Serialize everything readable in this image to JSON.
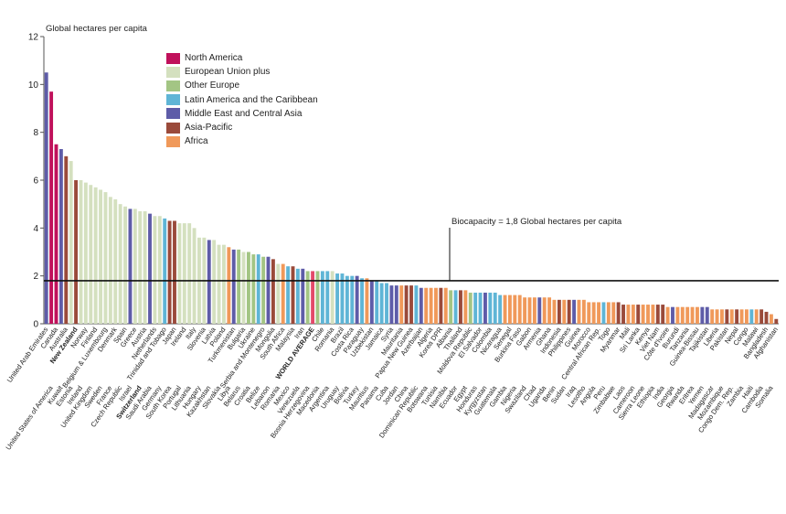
{
  "chart_data": {
    "type": "bar",
    "ylabel": "Global hectares per capita",
    "ylim": [
      0,
      12
    ],
    "yticks": [
      0,
      2,
      4,
      6,
      8,
      10,
      12
    ],
    "grid": false,
    "legend_position": "top-left",
    "biocapacity": {
      "value": 1.8,
      "label": "Biocapacity = 1,8 Global hectares per capita"
    },
    "regions": [
      {
        "id": "NA",
        "name": "North America",
        "color": "#c0115b"
      },
      {
        "id": "EU",
        "name": "European Union plus",
        "color": "#d4e0bf"
      },
      {
        "id": "OE",
        "name": "Other Europe",
        "color": "#a3c584"
      },
      {
        "id": "LA",
        "name": "Latin America and the Caribbean",
        "color": "#5fb5d6"
      },
      {
        "id": "ME",
        "name": "Middle East and Central Asia",
        "color": "#5e5ca8"
      },
      {
        "id": "AP",
        "name": "Asia-Pacific",
        "color": "#9a4a3a"
      },
      {
        "id": "AF",
        "name": "Africa",
        "color": "#f0995a"
      },
      {
        "id": "WA",
        "name": "",
        "color": "#e34a6a"
      }
    ],
    "countries": [
      {
        "name": "United Arab Emirates",
        "value": 10.5,
        "region": "ME"
      },
      {
        "name": "United States of America",
        "value": 9.7,
        "region": "NA"
      },
      {
        "name": "Canada",
        "value": 7.5,
        "region": "NA"
      },
      {
        "name": "Kuwait",
        "value": 7.3,
        "region": "ME"
      },
      {
        "name": "Australia",
        "value": 7.0,
        "region": "AP"
      },
      {
        "name": "Estonia",
        "value": 6.8,
        "region": "EU"
      },
      {
        "name": "New Zealand",
        "value": 6.0,
        "region": "AP",
        "bold": true
      },
      {
        "name": "Ireland",
        "value": 6.0,
        "region": "EU"
      },
      {
        "name": "Norway",
        "value": 5.9,
        "region": "EU"
      },
      {
        "name": "United Kingdom",
        "value": 5.8,
        "region": "EU"
      },
      {
        "name": "Finland",
        "value": 5.7,
        "region": "EU"
      },
      {
        "name": "Sweden",
        "value": 5.6,
        "region": "EU"
      },
      {
        "name": "Belgium & Luxembourg",
        "value": 5.5,
        "region": "EU"
      },
      {
        "name": "France",
        "value": 5.3,
        "region": "EU"
      },
      {
        "name": "Denmark",
        "value": 5.2,
        "region": "EU"
      },
      {
        "name": "Czech Republic",
        "value": 5.0,
        "region": "EU"
      },
      {
        "name": "Spain",
        "value": 4.9,
        "region": "EU"
      },
      {
        "name": "Israel",
        "value": 4.8,
        "region": "ME"
      },
      {
        "name": "Greece",
        "value": 4.8,
        "region": "EU"
      },
      {
        "name": "Switzerland",
        "value": 4.7,
        "region": "EU",
        "bold": true
      },
      {
        "name": "Austria",
        "value": 4.7,
        "region": "EU"
      },
      {
        "name": "Saudi Arabia",
        "value": 4.6,
        "region": "ME"
      },
      {
        "name": "Netherlands",
        "value": 4.5,
        "region": "EU"
      },
      {
        "name": "Germany",
        "value": 4.5,
        "region": "EU"
      },
      {
        "name": "Trinidad and Tobago",
        "value": 4.4,
        "region": "LA"
      },
      {
        "name": "South Korea",
        "value": 4.3,
        "region": "AP"
      },
      {
        "name": "Japan",
        "value": 4.3,
        "region": "AP"
      },
      {
        "name": "Portugal",
        "value": 4.2,
        "region": "EU"
      },
      {
        "name": "Ireland",
        "value": 4.2,
        "region": "EU"
      },
      {
        "name": "Lithuania",
        "value": 4.2,
        "region": "EU"
      },
      {
        "name": "Italy",
        "value": 4.0,
        "region": "EU"
      },
      {
        "name": "Hungary",
        "value": 3.6,
        "region": "EU"
      },
      {
        "name": "Slovenia",
        "value": 3.6,
        "region": "EU"
      },
      {
        "name": "Kazakhstan",
        "value": 3.5,
        "region": "ME"
      },
      {
        "name": "Latvia",
        "value": 3.5,
        "region": "EU"
      },
      {
        "name": "Slovakia",
        "value": 3.3,
        "region": "EU"
      },
      {
        "name": "Poland",
        "value": 3.3,
        "region": "EU"
      },
      {
        "name": "Libya",
        "value": 3.2,
        "region": "AF"
      },
      {
        "name": "Turkmenistan",
        "value": 3.1,
        "region": "ME"
      },
      {
        "name": "Belarus",
        "value": 3.1,
        "region": "OE"
      },
      {
        "name": "Bulgaria",
        "value": 3.0,
        "region": "EU"
      },
      {
        "name": "Croatia",
        "value": 3.0,
        "region": "OE"
      },
      {
        "name": "Ukraine",
        "value": 2.9,
        "region": "OE"
      },
      {
        "name": "Belize",
        "value": 2.9,
        "region": "LA"
      },
      {
        "name": "Serbia and Montenegro",
        "value": 2.8,
        "region": "OE"
      },
      {
        "name": "Lebanon",
        "value": 2.8,
        "region": "ME"
      },
      {
        "name": "Mongolia",
        "value": 2.7,
        "region": "AP"
      },
      {
        "name": "Romania",
        "value": 2.5,
        "region": "EU"
      },
      {
        "name": "South Africa",
        "value": 2.5,
        "region": "AF"
      },
      {
        "name": "Mexico",
        "value": 2.4,
        "region": "LA"
      },
      {
        "name": "Malaysia",
        "value": 2.4,
        "region": "AP"
      },
      {
        "name": "Venezuela",
        "value": 2.3,
        "region": "LA"
      },
      {
        "name": "Iran",
        "value": 2.3,
        "region": "ME"
      },
      {
        "name": "Bosnia Herzegovina",
        "value": 2.2,
        "region": "OE"
      },
      {
        "name": "WORLD AVERAGE",
        "value": 2.2,
        "region": "WA",
        "bold": true
      },
      {
        "name": "Macedonia",
        "value": 2.2,
        "region": "OE"
      },
      {
        "name": "Chile",
        "value": 2.2,
        "region": "LA"
      },
      {
        "name": "Argentina",
        "value": 2.2,
        "region": "LA"
      },
      {
        "name": "Romania",
        "value": 2.2,
        "region": "EU"
      },
      {
        "name": "Uruguay",
        "value": 2.1,
        "region": "LA"
      },
      {
        "name": "Brazil",
        "value": 2.1,
        "region": "LA"
      },
      {
        "name": "Bolivia",
        "value": 2.0,
        "region": "LA"
      },
      {
        "name": "Costa Rica",
        "value": 2.0,
        "region": "LA"
      },
      {
        "name": "Turkey",
        "value": 2.0,
        "region": "ME"
      },
      {
        "name": "Paraguay",
        "value": 1.9,
        "region": "LA"
      },
      {
        "name": "Mauritius",
        "value": 1.9,
        "region": "AF"
      },
      {
        "name": "Uzbekistan",
        "value": 1.8,
        "region": "ME"
      },
      {
        "name": "Panama",
        "value": 1.8,
        "region": "LA"
      },
      {
        "name": "Jamaica",
        "value": 1.7,
        "region": "LA"
      },
      {
        "name": "Cuba",
        "value": 1.7,
        "region": "LA"
      },
      {
        "name": "Syria",
        "value": 1.6,
        "region": "ME"
      },
      {
        "name": "Jordan",
        "value": 1.6,
        "region": "ME"
      },
      {
        "name": "Mauritania",
        "value": 1.6,
        "region": "AF"
      },
      {
        "name": "China",
        "value": 1.6,
        "region": "AP"
      },
      {
        "name": "Papua New Guinea",
        "value": 1.6,
        "region": "AP"
      },
      {
        "name": "Dominican Republic",
        "value": 1.6,
        "region": "LA"
      },
      {
        "name": "Azerbaijan",
        "value": 1.5,
        "region": "ME"
      },
      {
        "name": "Botswana",
        "value": 1.5,
        "region": "AF"
      },
      {
        "name": "Algeria",
        "value": 1.5,
        "region": "AF"
      },
      {
        "name": "Tunisia",
        "value": 1.5,
        "region": "AF"
      },
      {
        "name": "Korea DPR",
        "value": 1.5,
        "region": "AP"
      },
      {
        "name": "Namibia",
        "value": 1.5,
        "region": "AF"
      },
      {
        "name": "Albania",
        "value": 1.4,
        "region": "OE"
      },
      {
        "name": "Ecuador",
        "value": 1.4,
        "region": "LA"
      },
      {
        "name": "Thailand",
        "value": 1.4,
        "region": "AP"
      },
      {
        "name": "Egypt",
        "value": 1.4,
        "region": "AF"
      },
      {
        "name": "Moldova Republic",
        "value": 1.3,
        "region": "OE"
      },
      {
        "name": "Honduras",
        "value": 1.3,
        "region": "LA"
      },
      {
        "name": "El Salvador",
        "value": 1.3,
        "region": "LA"
      },
      {
        "name": "Kyrgyzstan",
        "value": 1.3,
        "region": "ME"
      },
      {
        "name": "Colombia",
        "value": 1.3,
        "region": "LA"
      },
      {
        "name": "Guatemala",
        "value": 1.3,
        "region": "LA"
      },
      {
        "name": "Nicaragua",
        "value": 1.2,
        "region": "LA"
      },
      {
        "name": "Gambia",
        "value": 1.2,
        "region": "AF"
      },
      {
        "name": "Senegal",
        "value": 1.2,
        "region": "AF"
      },
      {
        "name": "Nigeria",
        "value": 1.2,
        "region": "AF"
      },
      {
        "name": "Burkina Faso",
        "value": 1.2,
        "region": "AF"
      },
      {
        "name": "Swaziland",
        "value": 1.1,
        "region": "AF"
      },
      {
        "name": "Gabon",
        "value": 1.1,
        "region": "AF"
      },
      {
        "name": "Chad",
        "value": 1.1,
        "region": "AF"
      },
      {
        "name": "Armenia",
        "value": 1.1,
        "region": "ME"
      },
      {
        "name": "Uganda",
        "value": 1.1,
        "region": "AF"
      },
      {
        "name": "Ghana",
        "value": 1.1,
        "region": "AF"
      },
      {
        "name": "Benin",
        "value": 1.0,
        "region": "AF"
      },
      {
        "name": "Indonesia",
        "value": 1.0,
        "region": "AP"
      },
      {
        "name": "Sudan",
        "value": 1.0,
        "region": "AF"
      },
      {
        "name": "Philippines",
        "value": 1.0,
        "region": "AP"
      },
      {
        "name": "Iraq",
        "value": 1.0,
        "region": "ME"
      },
      {
        "name": "Guinea",
        "value": 1.0,
        "region": "AF"
      },
      {
        "name": "Lesotho",
        "value": 1.0,
        "region": "AF"
      },
      {
        "name": "Morocco",
        "value": 0.9,
        "region": "AF"
      },
      {
        "name": "Angola",
        "value": 0.9,
        "region": "AF"
      },
      {
        "name": "Central African Rep.",
        "value": 0.9,
        "region": "AF"
      },
      {
        "name": "Peru",
        "value": 0.9,
        "region": "LA"
      },
      {
        "name": "Togo",
        "value": 0.9,
        "region": "AF"
      },
      {
        "name": "Zimbabwe",
        "value": 0.9,
        "region": "AF"
      },
      {
        "name": "Myanmar",
        "value": 0.9,
        "region": "AP"
      },
      {
        "name": "Laos",
        "value": 0.8,
        "region": "AP"
      },
      {
        "name": "Mali",
        "value": 0.8,
        "region": "AF"
      },
      {
        "name": "Cameroon",
        "value": 0.8,
        "region": "AF"
      },
      {
        "name": "Sri Lanka",
        "value": 0.8,
        "region": "AP"
      },
      {
        "name": "Sierra Leone",
        "value": 0.8,
        "region": "AF"
      },
      {
        "name": "Kenya",
        "value": 0.8,
        "region": "AF"
      },
      {
        "name": "Ethiopia",
        "value": 0.8,
        "region": "AF"
      },
      {
        "name": "Viet Nam",
        "value": 0.8,
        "region": "AP"
      },
      {
        "name": "India",
        "value": 0.8,
        "region": "AP"
      },
      {
        "name": "Côte d'Ivoire",
        "value": 0.7,
        "region": "AF"
      },
      {
        "name": "Georgia",
        "value": 0.7,
        "region": "ME"
      },
      {
        "name": "Burundi",
        "value": 0.7,
        "region": "AF"
      },
      {
        "name": "Rwanda",
        "value": 0.7,
        "region": "AF"
      },
      {
        "name": "Tanzania",
        "value": 0.7,
        "region": "AF"
      },
      {
        "name": "Eritrea",
        "value": 0.7,
        "region": "AF"
      },
      {
        "name": "Guinea-Bissau",
        "value": 0.7,
        "region": "AF"
      },
      {
        "name": "Yemen",
        "value": 0.7,
        "region": "ME"
      },
      {
        "name": "Tajikistan",
        "value": 0.7,
        "region": "ME"
      },
      {
        "name": "Madagascar",
        "value": 0.6,
        "region": "AF"
      },
      {
        "name": "Liberia",
        "value": 0.6,
        "region": "AF"
      },
      {
        "name": "Mozambique",
        "value": 0.6,
        "region": "AF"
      },
      {
        "name": "Pakistan",
        "value": 0.6,
        "region": "AP"
      },
      {
        "name": "Congo Dem. Rep.",
        "value": 0.6,
        "region": "AF"
      },
      {
        "name": "Nepal",
        "value": 0.6,
        "region": "AP"
      },
      {
        "name": "Zambia",
        "value": 0.6,
        "region": "AF"
      },
      {
        "name": "Congo",
        "value": 0.6,
        "region": "AF"
      },
      {
        "name": "Haiti",
        "value": 0.6,
        "region": "LA"
      },
      {
        "name": "Malawi",
        "value": 0.6,
        "region": "AF"
      },
      {
        "name": "Cambodia",
        "value": 0.6,
        "region": "AP"
      },
      {
        "name": "Bangladesh",
        "value": 0.5,
        "region": "AP"
      },
      {
        "name": "Somalia",
        "value": 0.4,
        "region": "AF"
      },
      {
        "name": "Afghanistan",
        "value": 0.2,
        "region": "AP"
      }
    ]
  }
}
